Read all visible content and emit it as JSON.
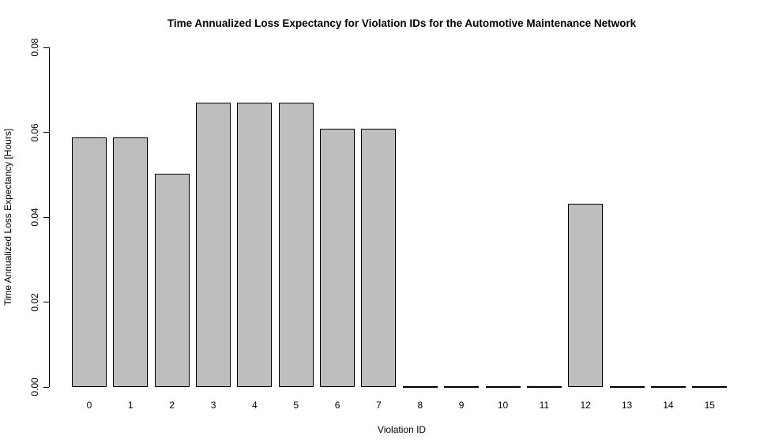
{
  "chart_data": {
    "type": "bar",
    "title": "Time Annualized Loss Expectancy for Violation IDs for the Automotive Maintenance Network",
    "xlabel": "Violation ID",
    "ylabel": "Time Annualized Loss Expectancy [Hours]",
    "categories": [
      "0",
      "1",
      "2",
      "3",
      "4",
      "5",
      "6",
      "7",
      "8",
      "9",
      "10",
      "11",
      "12",
      "13",
      "14",
      "15"
    ],
    "values": [
      0.0588,
      0.0588,
      0.0502,
      0.067,
      0.067,
      0.067,
      0.0608,
      0.0608,
      0,
      0,
      0,
      0,
      0.0432,
      0,
      0,
      0
    ],
    "ylim": [
      0,
      0.08
    ],
    "yticks": [
      0,
      0.02,
      0.04,
      0.06,
      0.08
    ],
    "ytick_labels": [
      "0.00",
      "0.02",
      "0.04",
      "0.06",
      "0.08"
    ],
    "grid": false,
    "legend": "none",
    "bar_fill": "#bebebe",
    "bar_border": "#000000",
    "text_color": "#000000",
    "background": "#ffffff"
  }
}
